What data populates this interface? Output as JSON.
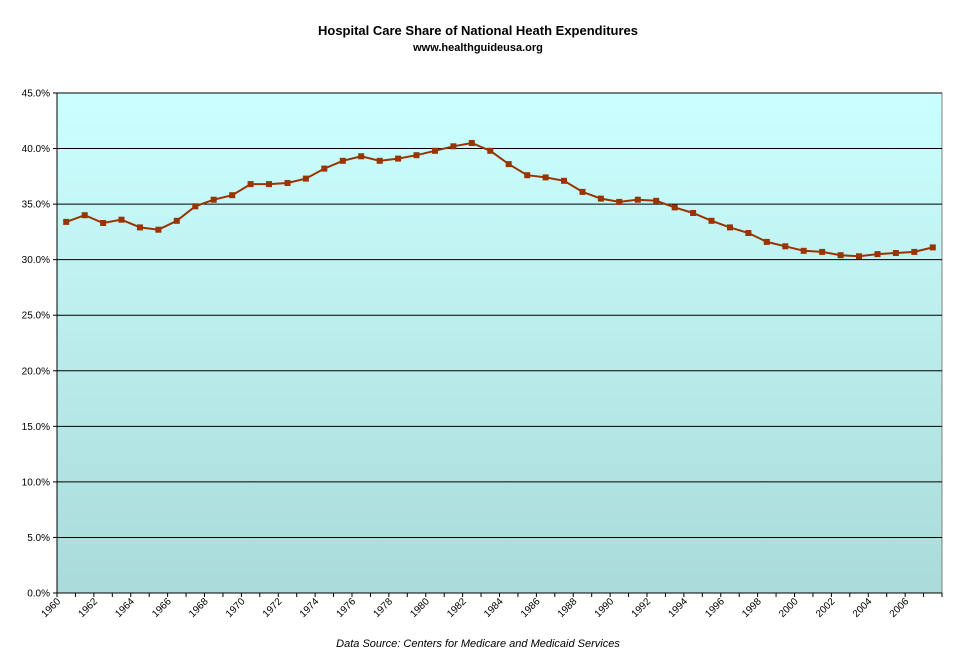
{
  "chart_data": {
    "type": "line",
    "title": "Hospital Care Share of National Heath Expenditures",
    "subtitle": "www.healthguideusa.org",
    "source": "Data Source: Centers for Medicare and Medicaid Services",
    "xlabel": "",
    "ylabel": "",
    "ylim": [
      0,
      45
    ],
    "y_ticks": [
      "0.0%",
      "5.0%",
      "10.0%",
      "15.0%",
      "20.0%",
      "25.0%",
      "30.0%",
      "35.0%",
      "40.0%",
      "45.0%"
    ],
    "x_ticks": [
      "1960",
      "1962",
      "1964",
      "1966",
      "1968",
      "1970",
      "1972",
      "1974",
      "1976",
      "1978",
      "1980",
      "1982",
      "1984",
      "1986",
      "1988",
      "1990",
      "1992",
      "1994",
      "1996",
      "1998",
      "2000",
      "2002",
      "2004",
      "2006"
    ],
    "grid": true,
    "legend": "none",
    "x": [
      1960,
      1961,
      1962,
      1963,
      1964,
      1965,
      1966,
      1967,
      1968,
      1969,
      1970,
      1971,
      1972,
      1973,
      1974,
      1975,
      1976,
      1977,
      1978,
      1979,
      1980,
      1981,
      1982,
      1983,
      1984,
      1985,
      1986,
      1987,
      1988,
      1989,
      1990,
      1991,
      1992,
      1993,
      1994,
      1995,
      1996,
      1997,
      1998,
      1999,
      2000,
      2001,
      2002,
      2003,
      2004,
      2005,
      2006,
      2007
    ],
    "series": [
      {
        "color": "#993300",
        "values": [
          33.4,
          34.0,
          33.3,
          33.6,
          32.9,
          32.7,
          33.5,
          34.8,
          35.4,
          35.8,
          36.8,
          36.8,
          36.9,
          37.3,
          38.2,
          38.9,
          39.3,
          38.9,
          39.1,
          39.4,
          39.8,
          40.2,
          40.5,
          39.8,
          38.6,
          37.6,
          37.4,
          37.1,
          36.1,
          35.5,
          35.2,
          35.4,
          35.3,
          34.7,
          34.2,
          33.5,
          32.9,
          32.4,
          31.6,
          31.2,
          30.8,
          30.7,
          30.4,
          30.3,
          30.5,
          30.6,
          30.7,
          31.1
        ]
      }
    ],
    "colors": {
      "plot_top": "#ccffff",
      "plot_bottom": "#aadada",
      "grid": "#000000",
      "line": "#993300"
    }
  }
}
